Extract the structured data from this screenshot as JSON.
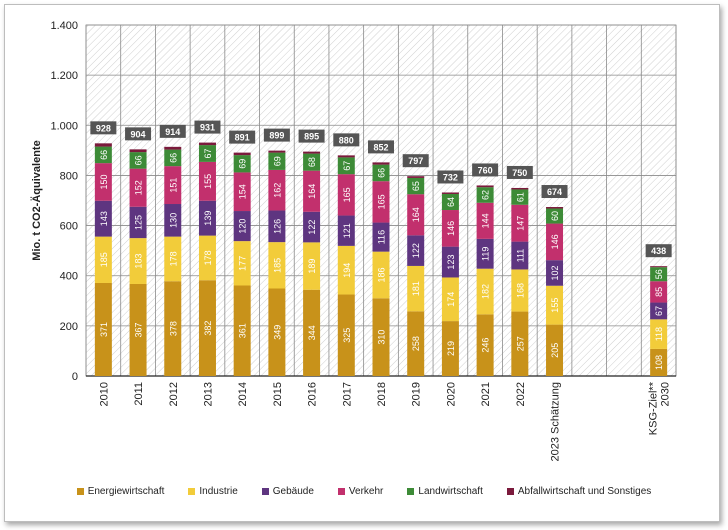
{
  "chart_data": {
    "type": "bar",
    "stacked": true,
    "ylabel": "Mio. t CO2-Äquivalente",
    "ylim": [
      0,
      1400
    ],
    "yticks": [
      0,
      200,
      400,
      600,
      800,
      1000,
      1200,
      1400
    ],
    "ytick_labels": [
      "0",
      "200",
      "400",
      "600",
      "800",
      "1.000",
      "1.200",
      "1.400"
    ],
    "categories": [
      "2010",
      "2011",
      "2012",
      "2013",
      "2014",
      "2015",
      "2016",
      "2017",
      "2018",
      "2019",
      "2020",
      "2021",
      "2022",
      "2023 Schätzung",
      "",
      "",
      "KSG-Ziel**\n2030"
    ],
    "totals": [
      928,
      904,
      914,
      931,
      891,
      899,
      895,
      880,
      852,
      797,
      732,
      760,
      750,
      674,
      null,
      null,
      438
    ],
    "series": [
      {
        "name": "Energiewirtschaft",
        "color": "#c8921a",
        "values": [
          371,
          367,
          378,
          382,
          361,
          349,
          344,
          325,
          310,
          258,
          219,
          246,
          257,
          205,
          null,
          null,
          108
        ]
      },
      {
        "name": "Industrie",
        "color": "#f2cc3a",
        "values": [
          185,
          183,
          178,
          178,
          177,
          185,
          189,
          194,
          186,
          181,
          174,
          182,
          168,
          155,
          null,
          null,
          118
        ]
      },
      {
        "name": "Gebäude",
        "color": "#5e3580",
        "values": [
          143,
          125,
          130,
          139,
          120,
          126,
          122,
          121,
          116,
          122,
          123,
          119,
          111,
          102,
          null,
          null,
          67
        ]
      },
      {
        "name": "Verkehr",
        "color": "#c2306d",
        "values": [
          150,
          152,
          151,
          155,
          154,
          162,
          164,
          165,
          165,
          164,
          146,
          144,
          147,
          146,
          null,
          null,
          85
        ]
      },
      {
        "name": "Landwirtschaft",
        "color": "#3d8b37",
        "values": [
          66,
          66,
          66,
          67,
          69,
          69,
          68,
          67,
          66,
          65,
          64,
          62,
          61,
          60,
          null,
          null,
          56
        ]
      },
      {
        "name": "Abfallwirtschaft und Sonstiges",
        "color": "#7b1a3c",
        "values": [
          13,
          11,
          11,
          10,
          10,
          8,
          8,
          8,
          9,
          7,
          6,
          7,
          6,
          6,
          null,
          null,
          4
        ]
      }
    ]
  }
}
